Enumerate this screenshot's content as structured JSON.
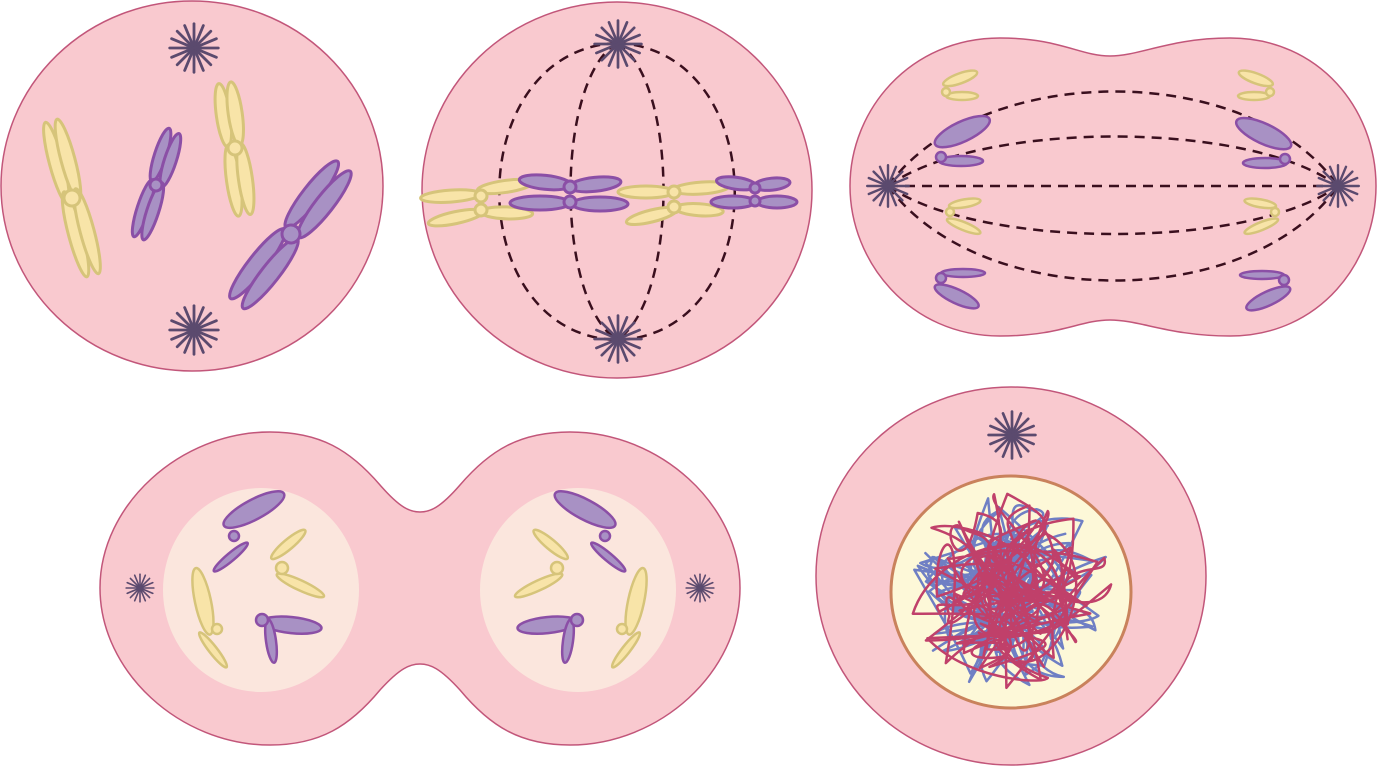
{
  "colors": {
    "cell_fill": "#f9c9cf",
    "cell_stroke": "#c2567a",
    "nucleus_fill": "#fbe6dd",
    "nucleus_envelope_fill": "#fdf8d8",
    "nucleus_envelope_stroke": "#c9825c",
    "centrosome": "#5b4a6e",
    "spindle": "#3a0f1e",
    "chromosome_yellow_fill": "#f8e4a8",
    "chromosome_yellow_stroke": "#d6c47a",
    "chromosome_purple_fill": "#a891c4",
    "chromosome_purple_stroke": "#8b4fa6",
    "chromatin_red": "#c0406a",
    "chromatin_blue": "#6f7fc4"
  },
  "icons": [
    "centrosome-icon",
    "chromosome-icon",
    "spindle-fiber",
    "chromatin-icon",
    "nucleus-icon"
  ]
}
